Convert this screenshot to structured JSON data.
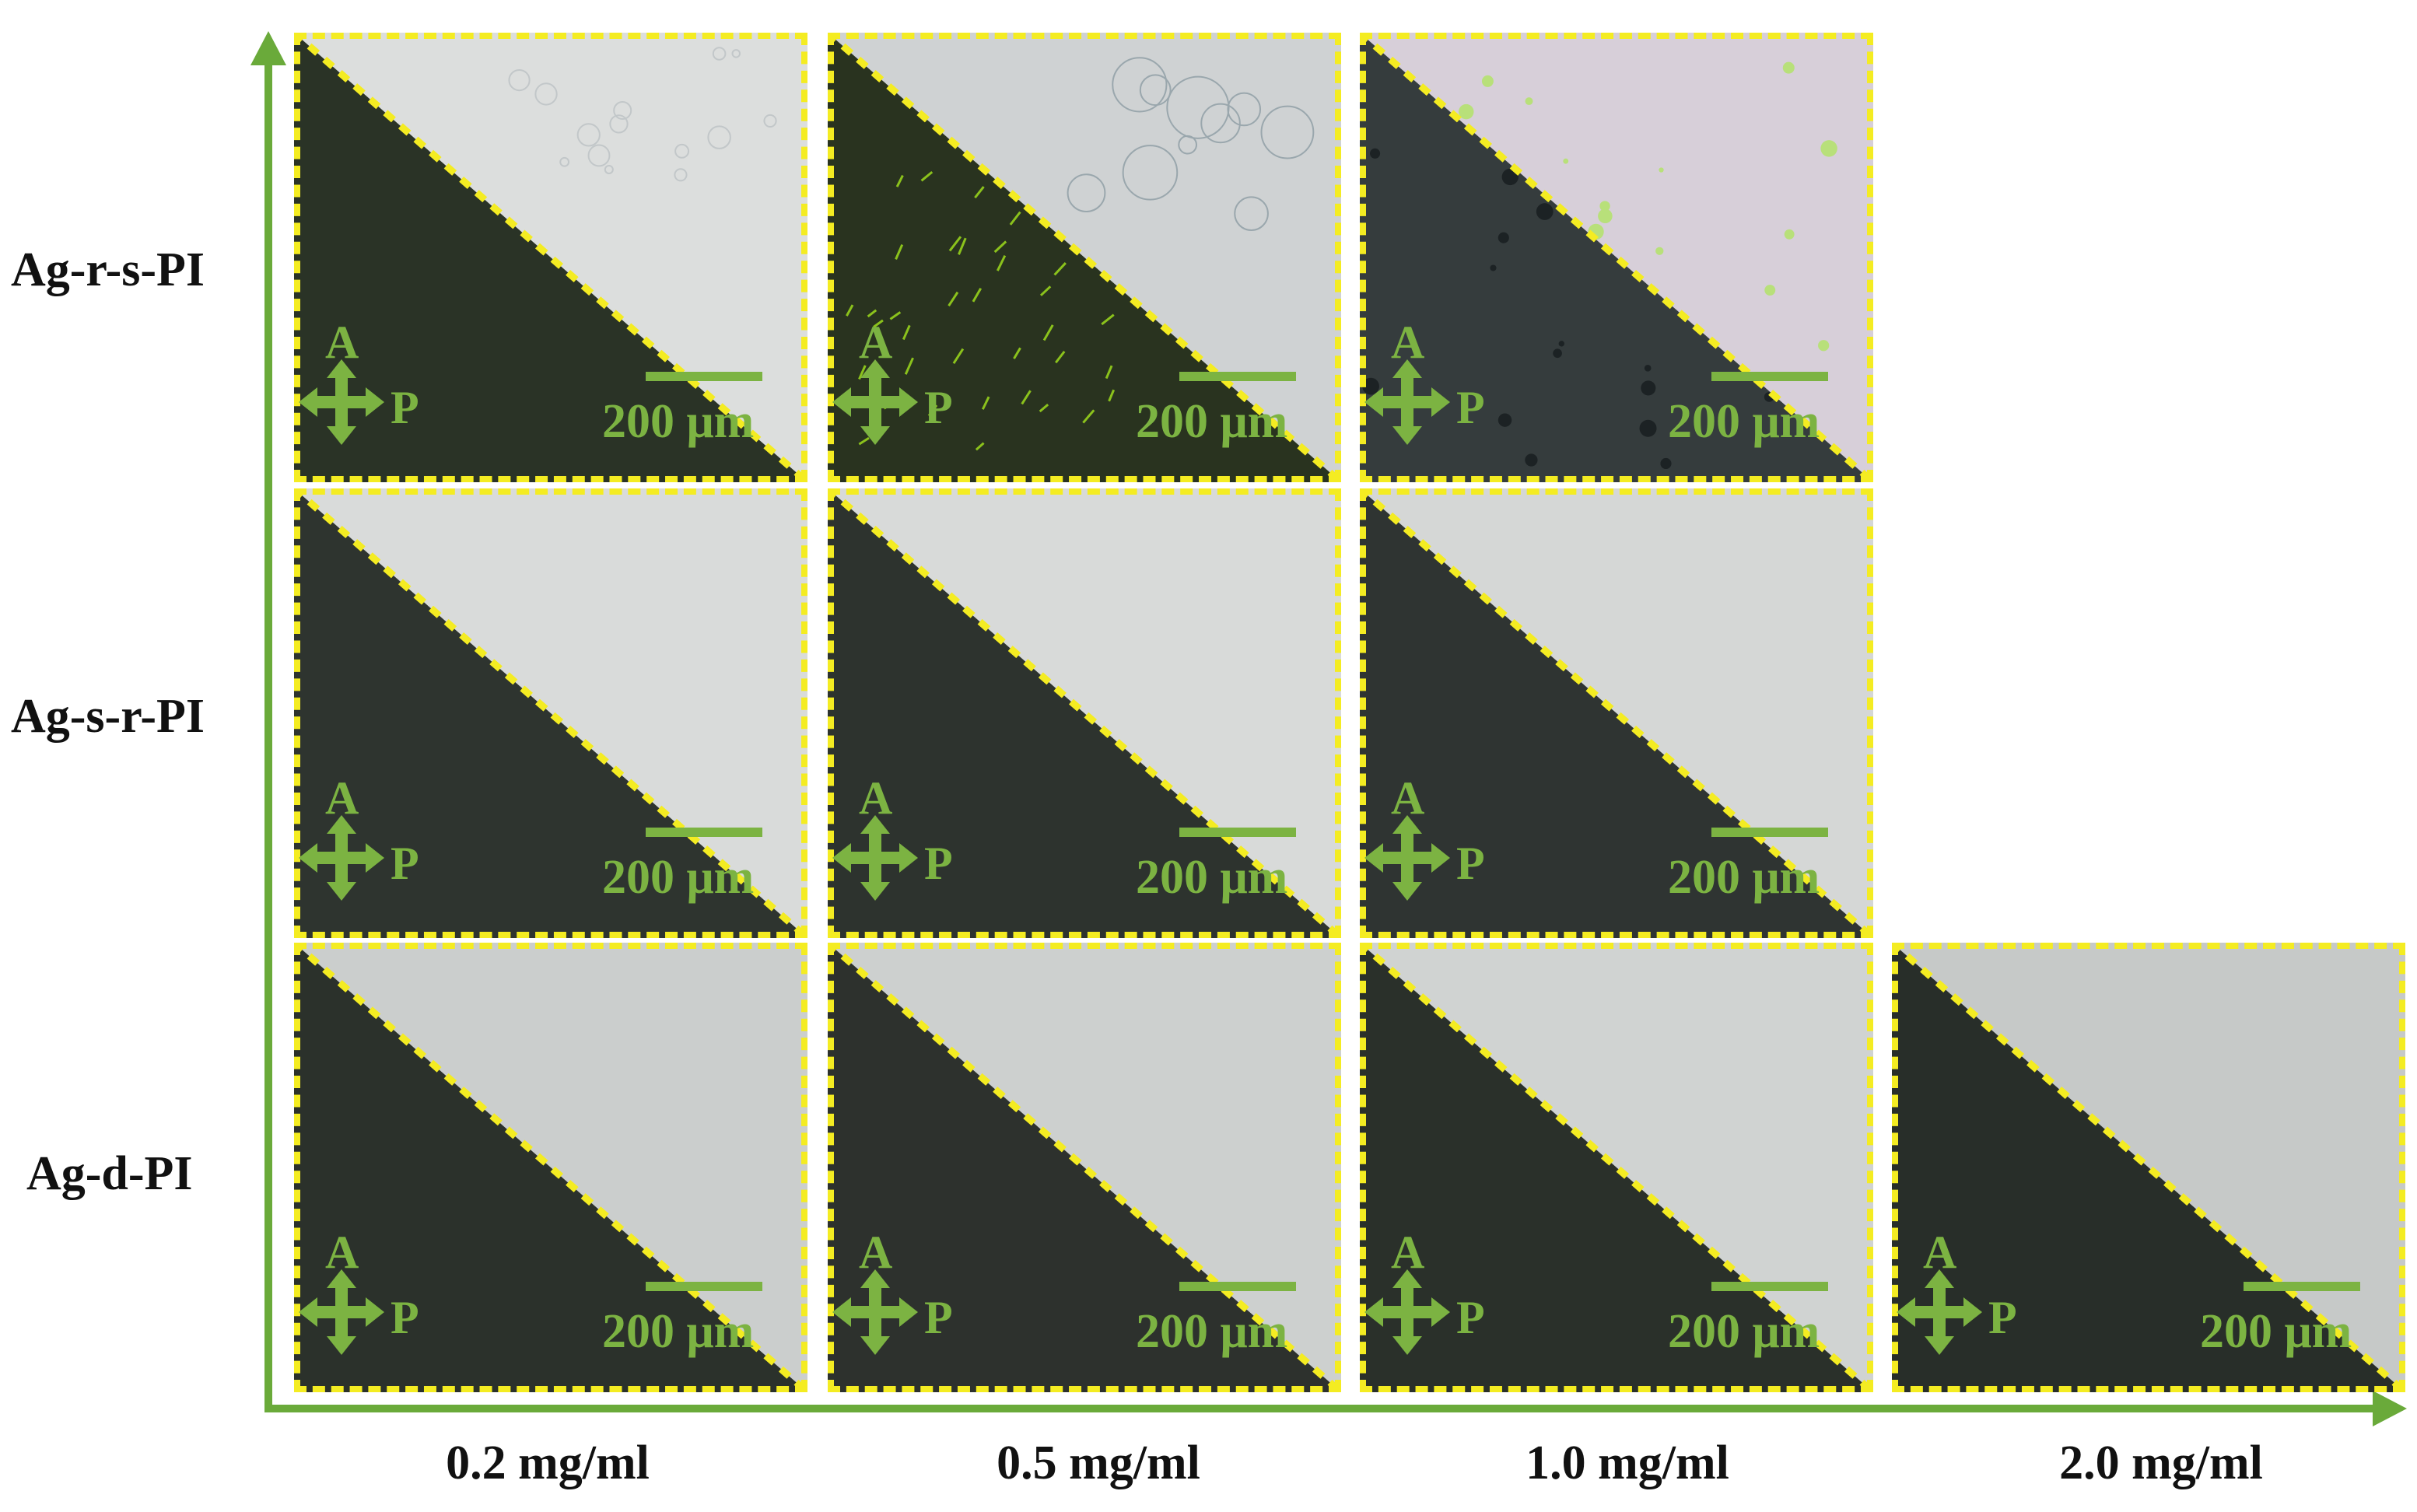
{
  "rows": [
    {
      "label": "Ag-r-s-PI"
    },
    {
      "label": "Ag-s-r-PI"
    },
    {
      "label": "Ag-d-PI"
    }
  ],
  "columns": [
    {
      "label": "0.2 mg/ml"
    },
    {
      "label": "0.5 mg/ml"
    },
    {
      "label": "1.0 mg/ml"
    },
    {
      "label": "2.0 mg/ml"
    }
  ],
  "panel_text": {
    "analyzer": "A",
    "polarizer": "P",
    "scale": "200 μm"
  },
  "colors": {
    "axis": "#6aaa3a",
    "annotation": "#7cb342",
    "divider": "#f4ec22",
    "dark_field": "#2c3128",
    "bright_field": "#d6d8d6"
  },
  "panels": [
    {
      "row": 0,
      "col": 0,
      "bright": "#dcdedd",
      "dark": "#2a3326",
      "texture": "light-debris"
    },
    {
      "row": 0,
      "col": 1,
      "bright": "#cfd2d3",
      "dark": "#29331f",
      "texture": "green-streaks"
    },
    {
      "row": 0,
      "col": 2,
      "bright": "#d7cfd9",
      "dark": "#353c3d",
      "texture": "dark-spots"
    },
    {
      "row": 1,
      "col": 0,
      "bright": "#d9dbda",
      "dark": "#2e342f",
      "texture": "none"
    },
    {
      "row": 1,
      "col": 1,
      "bright": "#d8dad9",
      "dark": "#2d332e",
      "texture": "none"
    },
    {
      "row": 1,
      "col": 2,
      "bright": "#d5d7d6",
      "dark": "#2f3432",
      "texture": "none"
    },
    {
      "row": 2,
      "col": 0,
      "bright": "#cbcecd",
      "dark": "#2b312b",
      "texture": "none"
    },
    {
      "row": 2,
      "col": 1,
      "bright": "#cdd0cf",
      "dark": "#2d312d",
      "texture": "none"
    },
    {
      "row": 2,
      "col": 2,
      "bright": "#d0d3d2",
      "dark": "#2a302a",
      "texture": "none"
    },
    {
      "row": 2,
      "col": 3,
      "bright": "#c6c9c8",
      "dark": "#282e29",
      "texture": "none"
    }
  ]
}
